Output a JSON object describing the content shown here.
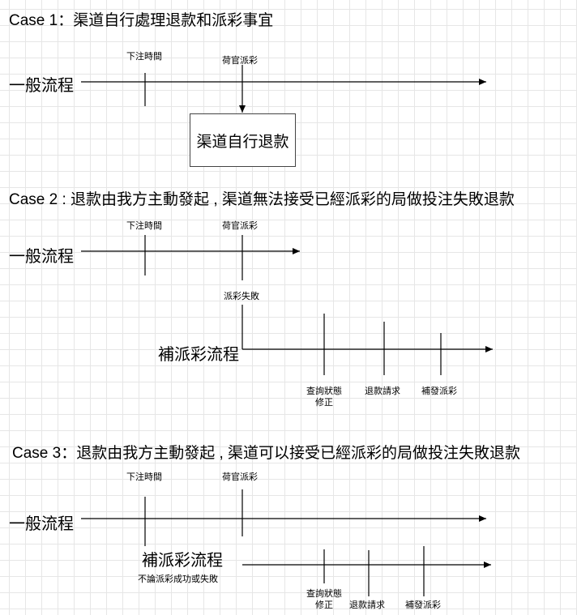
{
  "case1": {
    "title": "Case 1：渠道自行處理退款和派彩事宜",
    "flow_label": "一般流程",
    "marker_bet_time": "下注時間",
    "marker_dealer_payout": "荷官派彩",
    "box_label": "渠道自行退款"
  },
  "case2": {
    "title": "Case 2 : 退款由我方主動發起 , 渠道無法接受已經派彩的局做投注失敗退款",
    "flow_label": "一般流程",
    "marker_bet_time": "下注時間",
    "marker_dealer_payout": "荷官派彩",
    "payout_failed": "派彩失敗",
    "resend_flow_label": "補派彩流程",
    "step_query_line1": "查詢狀態",
    "step_query_line2": "修正",
    "step_refund_request": "退款請求",
    "step_resend_payout": "補發派彩"
  },
  "case3": {
    "title": "Case 3：退款由我方主動發起 , 渠道可以接受已經派彩的局做投注失敗退款",
    "flow_label": "一般流程",
    "marker_bet_time": "下注時間",
    "marker_dealer_payout": "荷官派彩",
    "resend_flow_label": "補派彩流程",
    "resend_note": "不論派彩成功或失敗",
    "step_query_line1": "查詢狀態",
    "step_query_line2": "修正",
    "step_refund_request": "退款請求",
    "step_resend_payout": "補發派彩"
  }
}
